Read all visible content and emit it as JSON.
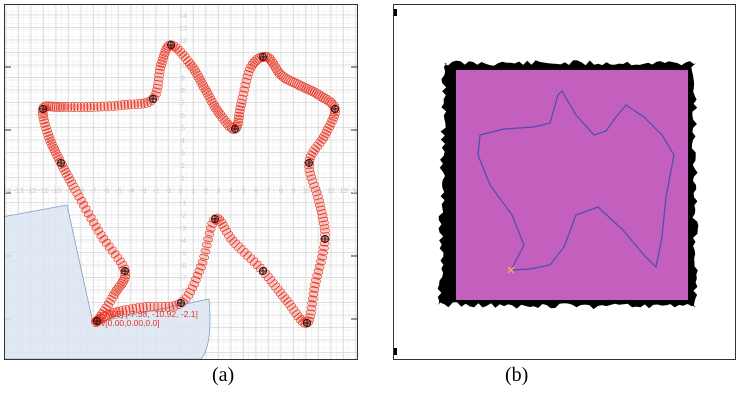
{
  "panel_a": {
    "caption": "(a)",
    "axis_ticks_x": [
      "-14",
      "-13",
      "-12",
      "-11",
      "-10",
      "-9",
      "-8",
      "-7",
      "-6",
      "-5",
      "-4",
      "-3",
      "-2",
      "-1",
      "0",
      "1",
      "2",
      "3",
      "4",
      "5",
      "6",
      "7",
      "8",
      "9",
      "10",
      "11",
      "12",
      "13",
      "14"
    ],
    "axis_ticks_y": [
      "14",
      "13",
      "12",
      "11",
      "10",
      "9",
      "8",
      "7",
      "6",
      "5",
      "4",
      "3",
      "2",
      "1",
      "0",
      "-1",
      "-2",
      "-3",
      "-4",
      "-5",
      "-6",
      "-7",
      "-8",
      "-9",
      "-10",
      "-11",
      "-12",
      "-13",
      "-14"
    ],
    "pose_readout_line1": "[05] [-7.38, -10.92, -2.1]",
    "pose_readout_line2": "v[0.00,0.00,0.0]",
    "colors": {
      "path": "#e8311f",
      "waypoint": "#111111",
      "sensor_fan": "#dbe6f3",
      "grid": "#dcdcdc"
    }
  },
  "panel_b": {
    "caption": "(b)",
    "colors": {
      "occupied": "#000000",
      "free": "#c35fbd",
      "trajectory": "#4a4fb0",
      "robot": "#f0b050"
    }
  }
}
